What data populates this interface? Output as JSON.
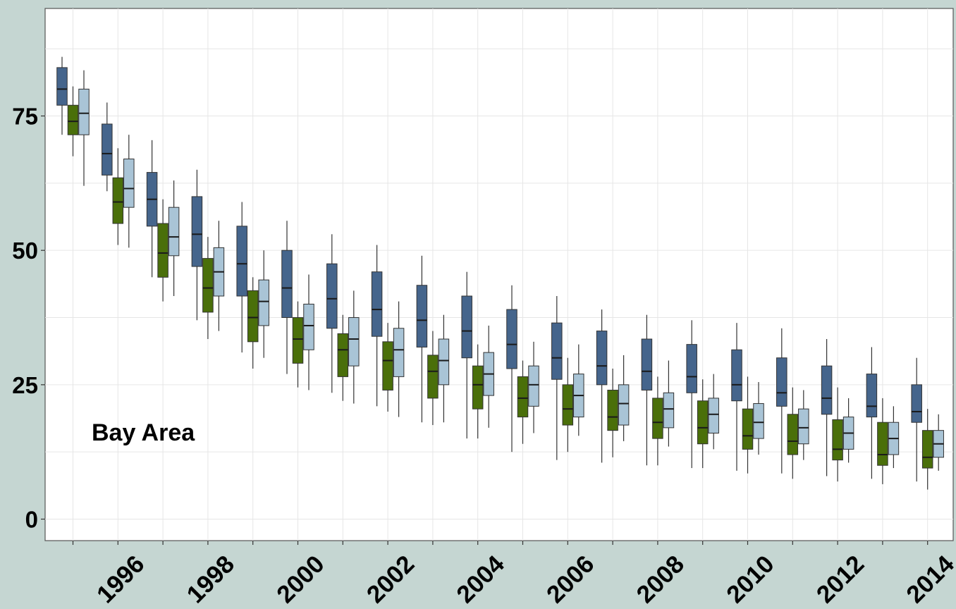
{
  "colors": {
    "frame_background": "#c5d6d2",
    "panel_background": "#ffffff",
    "grid": "#e6e6e6",
    "series": [
      "#45658c",
      "#4a6f0a",
      "#a9c4d6"
    ]
  },
  "chart_data": {
    "type": "boxplot",
    "annotation": "Bay Area",
    "x_tick_labels": [
      "1996",
      "1998",
      "2000",
      "2002",
      "2004",
      "2006",
      "2008",
      "2010",
      "2012",
      "2014"
    ],
    "y_tick_labels": [
      "0",
      "25",
      "50",
      "75"
    ],
    "ylim": [
      -4,
      95
    ],
    "grid": true,
    "legend": "none",
    "years": [
      1995,
      1996,
      1997,
      1998,
      1999,
      2000,
      2001,
      2002,
      2003,
      2004,
      2005,
      2006,
      2007,
      2008,
      2009,
      2010,
      2011,
      2012,
      2013,
      2014
    ],
    "series": [
      {
        "boxes": [
          {
            "min": 71.5,
            "q1": 77,
            "median": 80,
            "q3": 84,
            "max": 86
          },
          {
            "min": 61,
            "q1": 64,
            "median": 68,
            "q3": 73.5,
            "max": 77.5
          },
          {
            "min": 45,
            "q1": 54.5,
            "median": 59.5,
            "q3": 64.5,
            "max": 70.5
          },
          {
            "min": 37,
            "q1": 47,
            "median": 53,
            "q3": 60,
            "max": 65
          },
          {
            "min": 31,
            "q1": 41.5,
            "median": 47.5,
            "q3": 54.5,
            "max": 59
          },
          {
            "min": 27,
            "q1": 37.5,
            "median": 43,
            "q3": 50,
            "max": 55.5
          },
          {
            "min": 23.5,
            "q1": 35.5,
            "median": 41,
            "q3": 47.5,
            "max": 53
          },
          {
            "min": 21,
            "q1": 34,
            "median": 39,
            "q3": 46,
            "max": 51
          },
          {
            "min": 18,
            "q1": 32,
            "median": 37,
            "q3": 43.5,
            "max": 49
          },
          {
            "min": 15,
            "q1": 30,
            "median": 35,
            "q3": 41.5,
            "max": 46
          },
          {
            "min": 12.5,
            "q1": 28,
            "median": 32.5,
            "q3": 39,
            "max": 43.5
          },
          {
            "min": 11,
            "q1": 26,
            "median": 30,
            "q3": 36.5,
            "max": 41.5
          },
          {
            "min": 10.5,
            "q1": 25,
            "median": 28.5,
            "q3": 35,
            "max": 39
          },
          {
            "min": 10,
            "q1": 24,
            "median": 27.5,
            "q3": 33.5,
            "max": 38
          },
          {
            "min": 9.5,
            "q1": 23.5,
            "median": 26.5,
            "q3": 32.5,
            "max": 37
          },
          {
            "min": 9,
            "q1": 22,
            "median": 25,
            "q3": 31.5,
            "max": 36.5
          },
          {
            "min": 8.5,
            "q1": 21,
            "median": 23.5,
            "q3": 30,
            "max": 35.5
          },
          {
            "min": 8,
            "q1": 19.5,
            "median": 22.5,
            "q3": 28.5,
            "max": 33.5
          },
          {
            "min": 7.5,
            "q1": 19,
            "median": 21,
            "q3": 27,
            "max": 32
          },
          {
            "min": 7,
            "q1": 18,
            "median": 20,
            "q3": 25,
            "max": 30
          }
        ]
      },
      {
        "boxes": [
          {
            "min": 67.5,
            "q1": 71.5,
            "median": 74,
            "q3": 77,
            "max": 80.5
          },
          {
            "min": 51,
            "q1": 55,
            "median": 59,
            "q3": 63.5,
            "max": 69
          },
          {
            "min": 40.5,
            "q1": 45,
            "median": 49.5,
            "q3": 55,
            "max": 59.5
          },
          {
            "min": 33.5,
            "q1": 38.5,
            "median": 43,
            "q3": 48.5,
            "max": 52.5
          },
          {
            "min": 28,
            "q1": 33,
            "median": 37.5,
            "q3": 42.5,
            "max": 45
          },
          {
            "min": 24.5,
            "q1": 29,
            "median": 33.5,
            "q3": 37.5,
            "max": 40.5
          },
          {
            "min": 22,
            "q1": 26.5,
            "median": 31.5,
            "q3": 34.5,
            "max": 38
          },
          {
            "min": 20,
            "q1": 24,
            "median": 29.5,
            "q3": 33,
            "max": 36.5
          },
          {
            "min": 17.5,
            "q1": 22.5,
            "median": 27.5,
            "q3": 30.5,
            "max": 35
          },
          {
            "min": 15,
            "q1": 20.5,
            "median": 25,
            "q3": 28.5,
            "max": 32.5
          },
          {
            "min": 14,
            "q1": 19,
            "median": 22.5,
            "q3": 26.5,
            "max": 29.5
          },
          {
            "min": 12.5,
            "q1": 17.5,
            "median": 20.5,
            "q3": 25,
            "max": 30
          },
          {
            "min": 11.5,
            "q1": 16.5,
            "median": 19,
            "q3": 24,
            "max": 28
          },
          {
            "min": 10,
            "q1": 15,
            "median": 18,
            "q3": 22.5,
            "max": 26.5
          },
          {
            "min": 9.5,
            "q1": 14,
            "median": 17,
            "q3": 22,
            "max": 26
          },
          {
            "min": 8.5,
            "q1": 13,
            "median": 15.5,
            "q3": 20.5,
            "max": 26.5
          },
          {
            "min": 7.5,
            "q1": 12,
            "median": 14.5,
            "q3": 19.5,
            "max": 24.5
          },
          {
            "min": 7,
            "q1": 11,
            "median": 13,
            "q3": 18.5,
            "max": 24.5
          },
          {
            "min": 6.5,
            "q1": 10,
            "median": 12,
            "q3": 18,
            "max": 22.5
          },
          {
            "min": 5.5,
            "q1": 9.5,
            "median": 11.5,
            "q3": 16.5,
            "max": 20.5
          }
        ]
      },
      {
        "boxes": [
          {
            "min": 62,
            "q1": 71.5,
            "median": 75.5,
            "q3": 80,
            "max": 83.5
          },
          {
            "min": 50.5,
            "q1": 58,
            "median": 61.5,
            "q3": 67,
            "max": 71.5
          },
          {
            "min": 41.5,
            "q1": 49,
            "median": 52.5,
            "q3": 58,
            "max": 63
          },
          {
            "min": 35,
            "q1": 41.5,
            "median": 46,
            "q3": 50.5,
            "max": 55.5
          },
          {
            "min": 30,
            "q1": 36,
            "median": 40.5,
            "q3": 44.5,
            "max": 50
          },
          {
            "min": 24,
            "q1": 31.5,
            "median": 36,
            "q3": 40,
            "max": 45.5
          },
          {
            "min": 21.5,
            "q1": 28.5,
            "median": 33.5,
            "q3": 37.5,
            "max": 42.5
          },
          {
            "min": 19,
            "q1": 26.5,
            "median": 31.5,
            "q3": 35.5,
            "max": 40.5
          },
          {
            "min": 18,
            "q1": 25,
            "median": 29.5,
            "q3": 33.5,
            "max": 38
          },
          {
            "min": 17,
            "q1": 23,
            "median": 27,
            "q3": 31,
            "max": 36
          },
          {
            "min": 16,
            "q1": 21,
            "median": 25,
            "q3": 28.5,
            "max": 33
          },
          {
            "min": 15.5,
            "q1": 19,
            "median": 23,
            "q3": 27,
            "max": 32.5
          },
          {
            "min": 14.5,
            "q1": 17.5,
            "median": 21.5,
            "q3": 25,
            "max": 30.5
          },
          {
            "min": 13.5,
            "q1": 17,
            "median": 20.5,
            "q3": 23.5,
            "max": 29.5
          },
          {
            "min": 13,
            "q1": 16,
            "median": 19.5,
            "q3": 22.5,
            "max": 27
          },
          {
            "min": 12,
            "q1": 15,
            "median": 18,
            "q3": 21.5,
            "max": 25.5
          },
          {
            "min": 11,
            "q1": 14,
            "median": 17,
            "q3": 20.5,
            "max": 24
          },
          {
            "min": 10.5,
            "q1": 13,
            "median": 16,
            "q3": 19,
            "max": 22.5
          },
          {
            "min": 9.5,
            "q1": 12,
            "median": 15,
            "q3": 18,
            "max": 21
          },
          {
            "min": 9,
            "q1": 11.5,
            "median": 14,
            "q3": 16.5,
            "max": 19.5
          }
        ]
      }
    ]
  }
}
